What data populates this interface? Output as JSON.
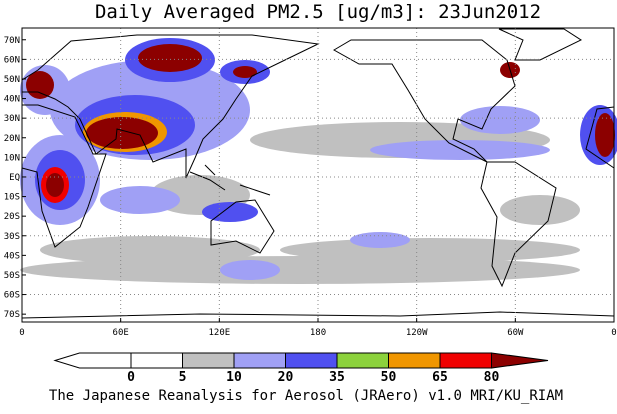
{
  "title": "Daily Averaged PM2.5 [ug/m3]: 23Jun2012",
  "footer": "The Japanese Reanalysis for Aerosol (JRAero) v1.0 MRI/KU_RIAM",
  "map": {
    "xlim": [
      0,
      360
    ],
    "ylim": [
      -74,
      76
    ],
    "xticks": [
      0,
      {
        "value": 60,
        "label": "60E"
      },
      {
        "value": 120,
        "label": "120E"
      },
      180,
      {
        "value": 240,
        "label": "120W"
      },
      {
        "value": 300,
        "label": "60W"
      },
      {
        "value": 360,
        "label": "0"
      }
    ],
    "yticks": [
      {
        "value": 70,
        "label": "70N"
      },
      {
        "value": 60,
        "label": "60N"
      },
      {
        "value": 50,
        "label": "50N"
      },
      {
        "value": 40,
        "label": "40N"
      },
      {
        "value": 30,
        "label": "30N"
      },
      {
        "value": 20,
        "label": "20N"
      },
      {
        "value": 10,
        "label": "10N"
      },
      {
        "value": 0,
        "label": "EQ"
      },
      {
        "value": -10,
        "label": "10S"
      },
      {
        "value": -20,
        "label": "20S"
      },
      {
        "value": -30,
        "label": "30S"
      },
      {
        "value": -40,
        "label": "40S"
      },
      {
        "value": -50,
        "label": "50S"
      },
      {
        "value": -60,
        "label": "60S"
      },
      {
        "value": -70,
        "label": "70S"
      }
    ],
    "grid_lines": [
      60,
      30,
      0,
      -30,
      -60
    ]
  },
  "colorbar": {
    "levels": [
      0,
      5,
      10,
      20,
      35,
      50,
      65,
      80
    ],
    "colors": [
      "#ffffff",
      "#ffffff",
      "#c0c0c0",
      "#a0a0f5",
      "#5050f0",
      "#8cd23c",
      "#f09600",
      "#f00000",
      "#8c0000"
    ]
  }
}
